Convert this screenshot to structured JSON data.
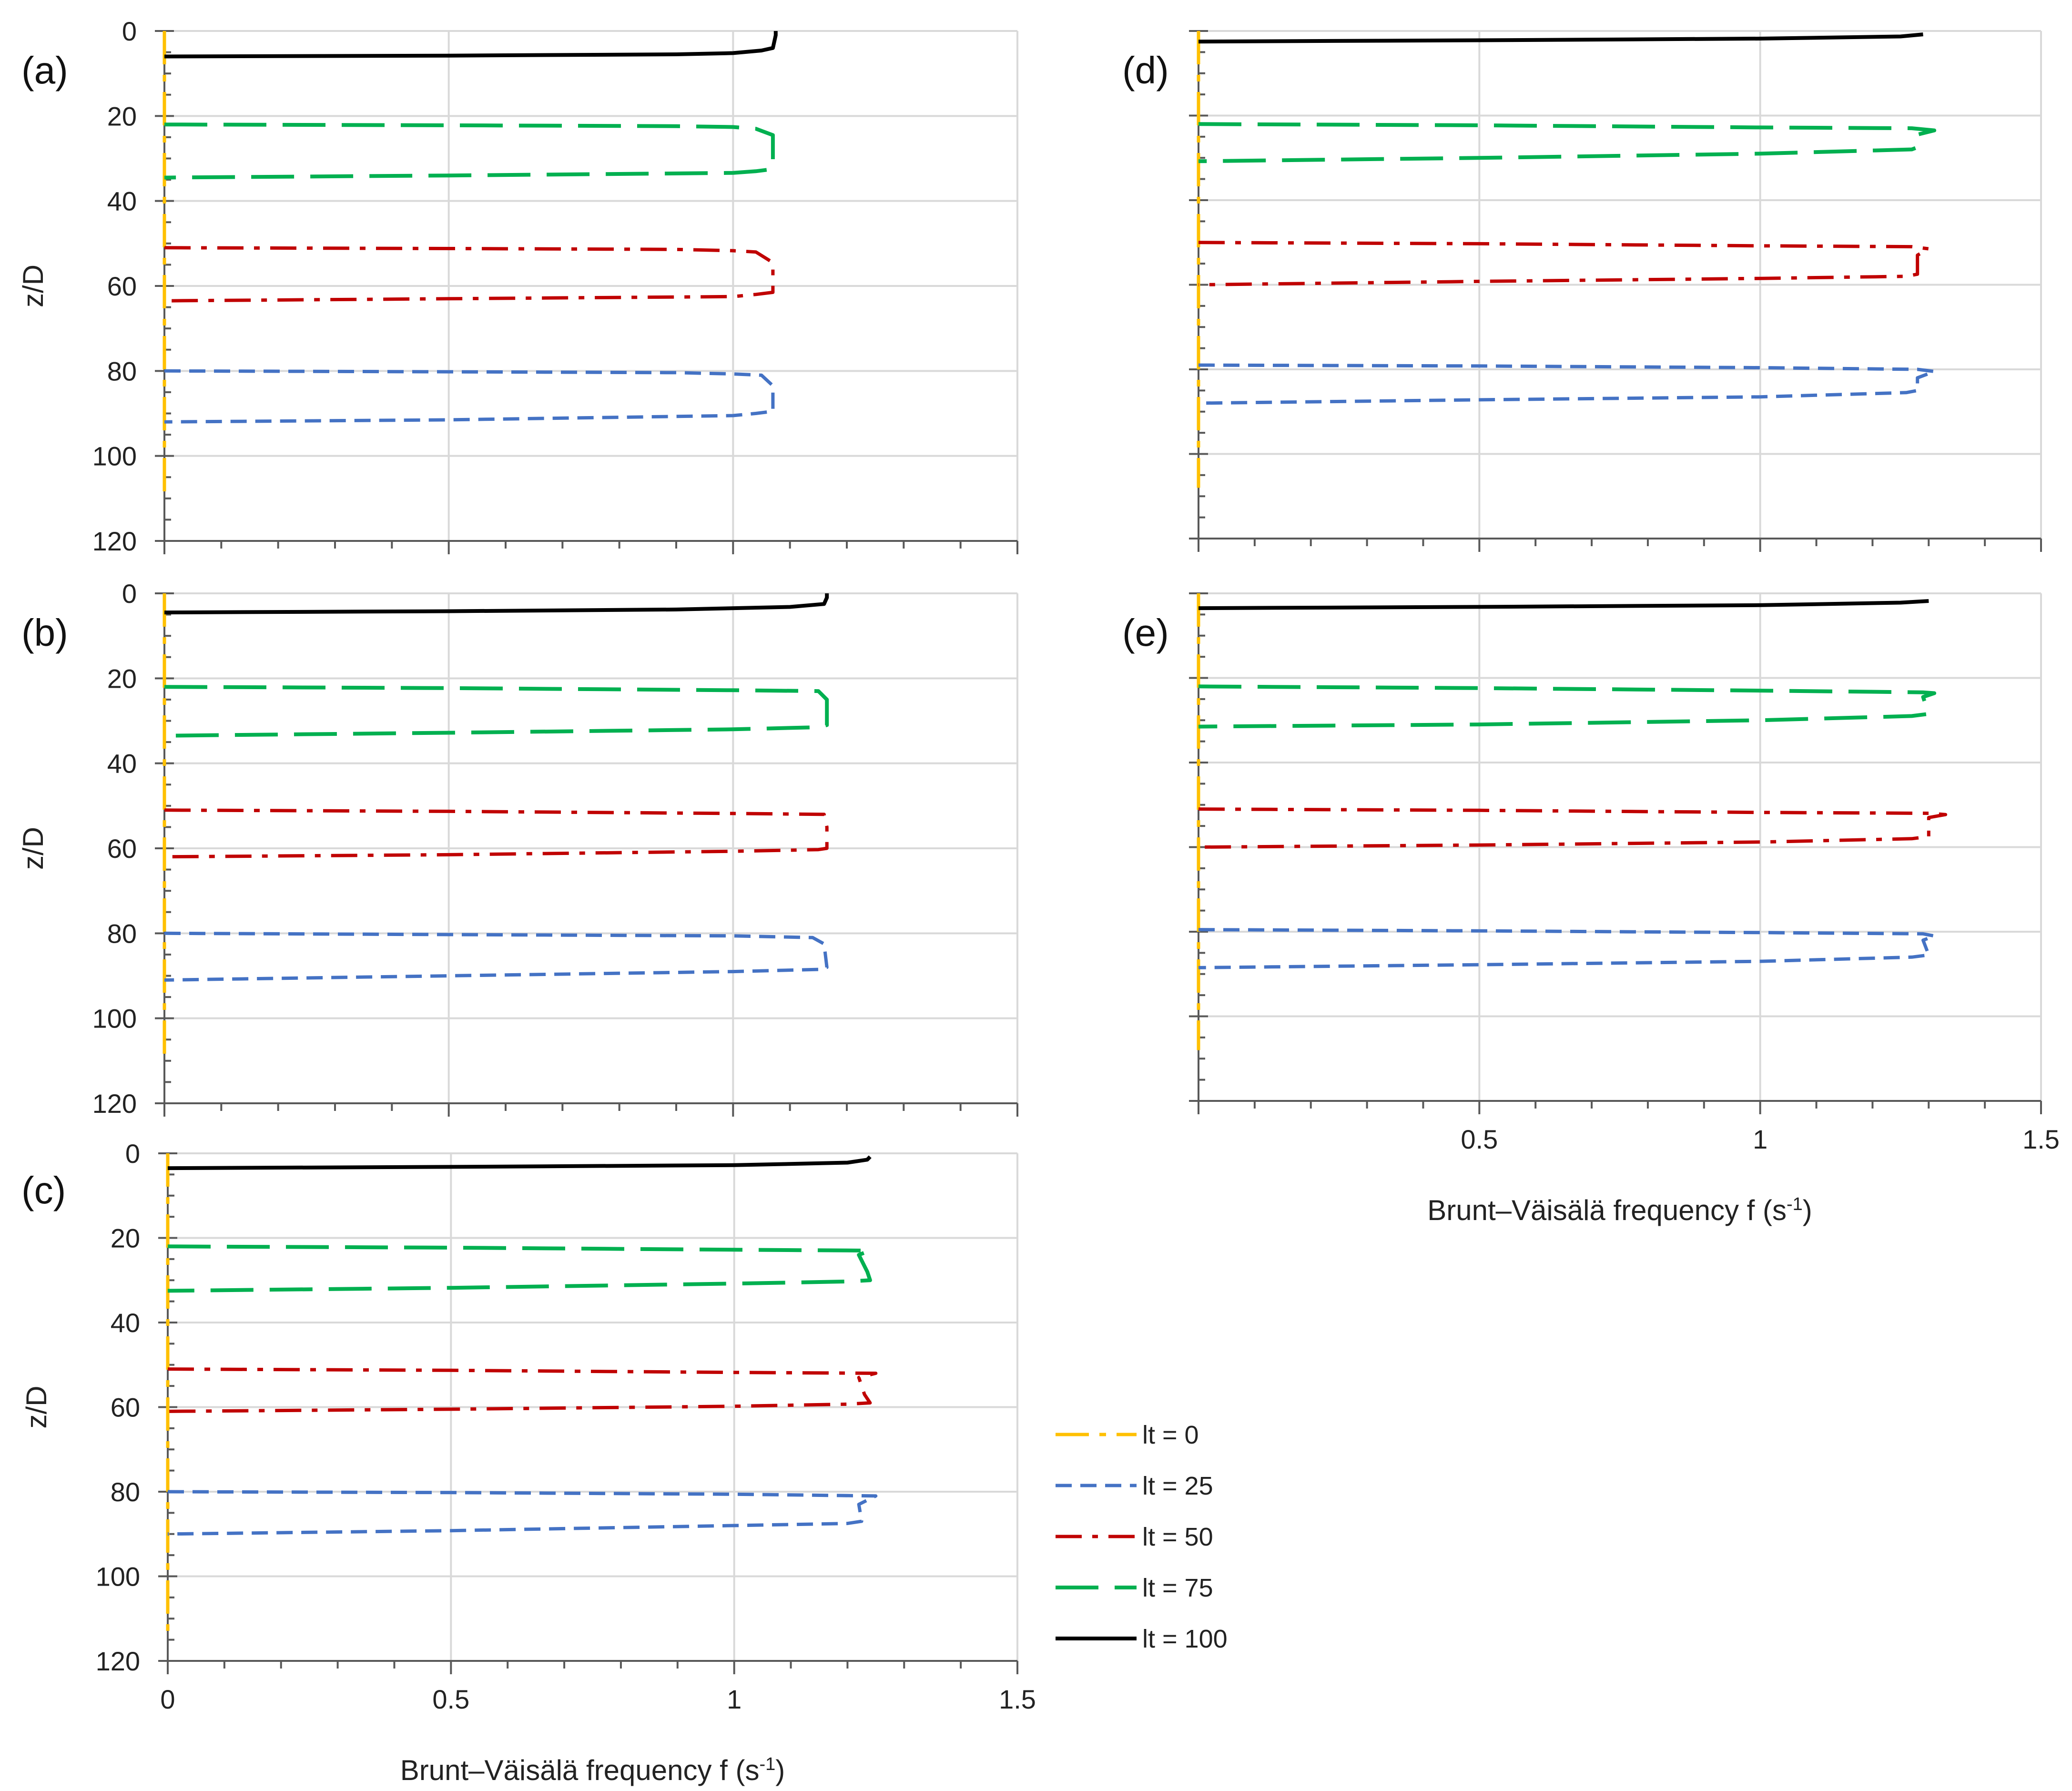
{
  "chart_data": {
    "type": "line",
    "figure_description": "Vertical profiles of Brunt–Väisälä frequency at five conditions (a)-(e)",
    "xlabel": "Brunt–Väisälä frequency f (s",
    "xlabel_sup": "-1",
    "xlabel_end": ")",
    "ylabel": "z/D",
    "xlim": [
      0,
      1.5
    ],
    "ylim": [
      0,
      120
    ],
    "x_ticks": [
      "0",
      "0.5",
      "1",
      "1.5"
    ],
    "y_ticks": [
      "0",
      "20",
      "40",
      "60",
      "80",
      "100",
      "120"
    ],
    "legend": [
      {
        "label": "lt = 0",
        "color": "#FFC000",
        "style": "dashdot"
      },
      {
        "label": "lt = 25",
        "color": "#4472C4",
        "style": "short-dash"
      },
      {
        "label": "lt = 50",
        "color": "#C00000",
        "style": "dashdot"
      },
      {
        "label": "lt = 75",
        "color": "#00B050",
        "style": "long-dash"
      },
      {
        "label": "lt = 100",
        "color": "#000000",
        "style": "solid"
      }
    ],
    "series_colors": {
      "lt0": "#FFC000",
      "lt25": "#4472C4",
      "lt50": "#C00000",
      "lt75": "#00B050",
      "lt100": "#000000"
    },
    "panels": [
      {
        "label": "(a)",
        "series": [
          {
            "name": "lt = 100",
            "points": [
              [
                0,
                6
              ],
              [
                0.5,
                5.8
              ],
              [
                0.9,
                5.5
              ],
              [
                1.0,
                5.2
              ],
              [
                1.05,
                4.6
              ],
              [
                1.07,
                4
              ],
              [
                1.075,
                1
              ],
              [
                1.075,
                0
              ]
            ]
          },
          {
            "name": "lt = 75",
            "points": [
              [
                0,
                22
              ],
              [
                0.5,
                22.2
              ],
              [
                0.9,
                22.4
              ],
              [
                1.0,
                22.6
              ],
              [
                1.04,
                23
              ],
              [
                1.07,
                24.5
              ],
              [
                1.07,
                32.5
              ],
              [
                1.04,
                33
              ],
              [
                1.0,
                33.4
              ],
              [
                0.5,
                34
              ],
              [
                0,
                34.5
              ]
            ]
          },
          {
            "name": "lt = 50",
            "points": [
              [
                0,
                51
              ],
              [
                0.5,
                51.2
              ],
              [
                0.9,
                51.4
              ],
              [
                1.0,
                51.7
              ],
              [
                1.04,
                52
              ],
              [
                1.07,
                54.5
              ],
              [
                1.07,
                61.5
              ],
              [
                1.04,
                62
              ],
              [
                1.0,
                62.5
              ],
              [
                0.5,
                63
              ],
              [
                0,
                63.5
              ]
            ]
          },
          {
            "name": "lt = 25",
            "points": [
              [
                0,
                80
              ],
              [
                0.5,
                80.2
              ],
              [
                0.9,
                80.4
              ],
              [
                1.0,
                80.7
              ],
              [
                1.05,
                81
              ],
              [
                1.07,
                83.5
              ],
              [
                1.07,
                89.5
              ],
              [
                1.04,
                90
              ],
              [
                1.0,
                90.5
              ],
              [
                0.5,
                91.5
              ],
              [
                0,
                92
              ]
            ]
          },
          {
            "name": "lt = 0",
            "points": [
              [
                0,
                0
              ],
              [
                0,
                110
              ]
            ]
          }
        ]
      },
      {
        "label": "(b)",
        "series": [
          {
            "name": "lt = 100",
            "points": [
              [
                0,
                4.5
              ],
              [
                0.5,
                4.2
              ],
              [
                0.9,
                3.8
              ],
              [
                1.1,
                3.2
              ],
              [
                1.16,
                2.5
              ],
              [
                1.165,
                1
              ],
              [
                1.165,
                0
              ]
            ]
          },
          {
            "name": "lt = 75",
            "points": [
              [
                0,
                22
              ],
              [
                0.5,
                22.3
              ],
              [
                1.0,
                22.8
              ],
              [
                1.15,
                23
              ],
              [
                1.165,
                25
              ],
              [
                1.165,
                31
              ],
              [
                1.15,
                31.5
              ],
              [
                1.0,
                32
              ],
              [
                0.5,
                32.8
              ],
              [
                0,
                33.5
              ]
            ]
          },
          {
            "name": "lt = 50",
            "points": [
              [
                0,
                51
              ],
              [
                0.5,
                51.3
              ],
              [
                1.0,
                51.8
              ],
              [
                1.16,
                52
              ],
              [
                1.165,
                55
              ],
              [
                1.165,
                60
              ],
              [
                1.15,
                60.3
              ],
              [
                1.0,
                60.7
              ],
              [
                0.5,
                61.5
              ],
              [
                0,
                62
              ]
            ]
          },
          {
            "name": "lt = 25",
            "points": [
              [
                0,
                80
              ],
              [
                0.5,
                80.3
              ],
              [
                1.0,
                80.6
              ],
              [
                1.14,
                81
              ],
              [
                1.16,
                82.5
              ],
              [
                1.165,
                88
              ],
              [
                1.15,
                88.5
              ],
              [
                1.0,
                89
              ],
              [
                0.5,
                90
              ],
              [
                0,
                91
              ]
            ]
          },
          {
            "name": "lt = 0",
            "points": [
              [
                0,
                0
              ],
              [
                0,
                110
              ]
            ]
          }
        ]
      },
      {
        "label": "(c)",
        "series": [
          {
            "name": "lt = 100",
            "points": [
              [
                0,
                3.5
              ],
              [
                0.5,
                3.2
              ],
              [
                1.0,
                2.8
              ],
              [
                1.2,
                2.2
              ],
              [
                1.235,
                1.5
              ],
              [
                1.24,
                0.8
              ]
            ]
          },
          {
            "name": "lt = 75",
            "points": [
              [
                0,
                22
              ],
              [
                0.5,
                22.3
              ],
              [
                1.0,
                22.8
              ],
              [
                1.24,
                23
              ],
              [
                1.22,
                24
              ],
              [
                1.235,
                28
              ],
              [
                1.24,
                30
              ],
              [
                1.2,
                30.3
              ],
              [
                1.0,
                30.8
              ],
              [
                0.5,
                31.8
              ],
              [
                0,
                32.5
              ]
            ]
          },
          {
            "name": "lt = 50",
            "points": [
              [
                0,
                51
              ],
              [
                0.5,
                51.3
              ],
              [
                1.0,
                51.8
              ],
              [
                1.25,
                52
              ],
              [
                1.22,
                53
              ],
              [
                1.23,
                57
              ],
              [
                1.24,
                59
              ],
              [
                1.2,
                59.3
              ],
              [
                1.0,
                59.8
              ],
              [
                0.5,
                60.5
              ],
              [
                0,
                61
              ]
            ]
          },
          {
            "name": "lt = 25",
            "points": [
              [
                0,
                80
              ],
              [
                0.5,
                80.2
              ],
              [
                1.0,
                80.6
              ],
              [
                1.25,
                81
              ],
              [
                1.22,
                83
              ],
              [
                1.225,
                87
              ],
              [
                1.2,
                87.5
              ],
              [
                1.0,
                88
              ],
              [
                0.5,
                89.2
              ],
              [
                0,
                90
              ]
            ]
          },
          {
            "name": "lt = 0",
            "points": [
              [
                0,
                0
              ],
              [
                0,
                115
              ]
            ]
          }
        ]
      },
      {
        "label": "(d)",
        "series": [
          {
            "name": "lt = 100",
            "points": [
              [
                0,
                2.5
              ],
              [
                0.5,
                2.2
              ],
              [
                1.0,
                1.8
              ],
              [
                1.25,
                1.3
              ],
              [
                1.29,
                0.8
              ]
            ]
          },
          {
            "name": "lt = 75",
            "points": [
              [
                0,
                22
              ],
              [
                0.5,
                22.3
              ],
              [
                1.0,
                22.8
              ],
              [
                1.27,
                23
              ],
              [
                1.31,
                23.5
              ],
              [
                1.28,
                24.5
              ],
              [
                1.28,
                27.5
              ],
              [
                1.27,
                28
              ],
              [
                1.0,
                29
              ],
              [
                0.5,
                30
              ],
              [
                0,
                30.8
              ]
            ]
          },
          {
            "name": "lt = 50",
            "points": [
              [
                0,
                50
              ],
              [
                0.5,
                50.3
              ],
              [
                1.0,
                50.8
              ],
              [
                1.27,
                51
              ],
              [
                1.3,
                51.5
              ],
              [
                1.28,
                53
              ],
              [
                1.28,
                57.5
              ],
              [
                1.26,
                58
              ],
              [
                1.0,
                58.5
              ],
              [
                0.5,
                59.2
              ],
              [
                0,
                60
              ]
            ]
          },
          {
            "name": "lt = 25",
            "points": [
              [
                0,
                79
              ],
              [
                0.5,
                79.2
              ],
              [
                1.0,
                79.6
              ],
              [
                1.28,
                80
              ],
              [
                1.31,
                80.5
              ],
              [
                1.28,
                82
              ],
              [
                1.28,
                85
              ],
              [
                1.26,
                85.5
              ],
              [
                1.0,
                86.5
              ],
              [
                0.5,
                87.2
              ],
              [
                0,
                88
              ]
            ]
          },
          {
            "name": "lt = 0",
            "points": [
              [
                0,
                0
              ],
              [
                0,
                108
              ]
            ]
          }
        ]
      },
      {
        "label": "(e)",
        "series": [
          {
            "name": "lt = 100",
            "points": [
              [
                0,
                3.5
              ],
              [
                0.5,
                3.2
              ],
              [
                1.0,
                2.8
              ],
              [
                1.25,
                2.2
              ],
              [
                1.3,
                1.8
              ]
            ]
          },
          {
            "name": "lt = 75",
            "points": [
              [
                0,
                22
              ],
              [
                0.5,
                22.4
              ],
              [
                1.0,
                23
              ],
              [
                1.29,
                23.4
              ],
              [
                1.31,
                23.6
              ],
              [
                1.29,
                24.5
              ],
              [
                1.3,
                28.5
              ],
              [
                1.27,
                29
              ],
              [
                1.0,
                30
              ],
              [
                0.5,
                31
              ],
              [
                0,
                31.5
              ]
            ]
          },
          {
            "name": "lt = 50",
            "points": [
              [
                0,
                51
              ],
              [
                0.5,
                51.3
              ],
              [
                1.0,
                51.8
              ],
              [
                1.3,
                52
              ],
              [
                1.33,
                52.3
              ],
              [
                1.3,
                53
              ],
              [
                1.3,
                57.5
              ],
              [
                1.27,
                58
              ],
              [
                1.0,
                58.8
              ],
              [
                0.5,
                59.5
              ],
              [
                0,
                60
              ]
            ]
          },
          {
            "name": "lt = 25",
            "points": [
              [
                0,
                79.5
              ],
              [
                0.5,
                79.8
              ],
              [
                1.0,
                80.2
              ],
              [
                1.29,
                80.5
              ],
              [
                1.31,
                81
              ],
              [
                1.29,
                82
              ],
              [
                1.3,
                85.5
              ],
              [
                1.27,
                86
              ],
              [
                1.0,
                87
              ],
              [
                0.5,
                87.8
              ],
              [
                0,
                88.5
              ]
            ]
          },
          {
            "name": "lt = 0",
            "points": [
              [
                0,
                0
              ],
              [
                0,
                108
              ]
            ]
          }
        ]
      }
    ]
  }
}
